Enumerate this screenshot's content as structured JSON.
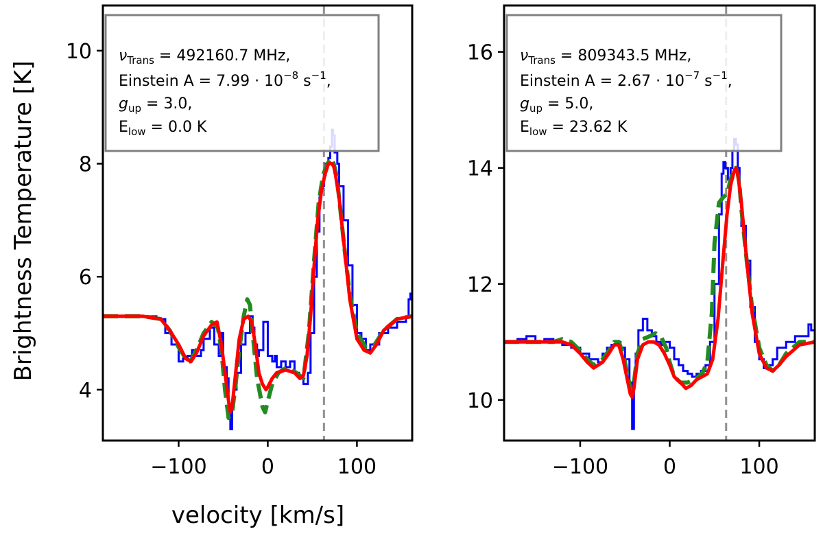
{
  "figure": {
    "ylabel": "Brightness Temperature [K]",
    "xlabel": "velocity [km/s]"
  },
  "chart_data": [
    {
      "type": "line",
      "xlim": [
        -185,
        162
      ],
      "ylim": [
        3.1,
        10.8
      ],
      "xticks": [
        -100,
        0,
        100
      ],
      "xtick_labels": [
        "−100",
        "0",
        "100"
      ],
      "yticks": [
        4,
        6,
        8,
        10
      ],
      "ytick_labels": [
        "4",
        "6",
        "8",
        "10"
      ],
      "vline_x": 63,
      "annotation": [
        {
          "kind": "nu",
          "label": "Trans",
          "value": " = 492160.7 MHz,"
        },
        {
          "kind": "einstein",
          "prefix": "Einstein A = 7.99 · 10",
          "exp": "−8",
          "suffix": " s",
          "suffix_exp": "−1",
          "tail": ","
        },
        {
          "kind": "gup",
          "sub": "up",
          "value": " = 3.0,"
        },
        {
          "kind": "elow",
          "main": "E",
          "sub": "low",
          "value": " = 0.0 K"
        }
      ],
      "series": [
        {
          "name": "observed",
          "color": "#0000ff",
          "style": "step",
          "x": [
            -185,
            -140,
            -125,
            -115,
            -108,
            -100,
            -95,
            -90,
            -85,
            -80,
            -75,
            -72,
            -65,
            -60,
            -55,
            -52,
            -50,
            -46,
            -44,
            -42,
            -40,
            -38,
            -35,
            -30,
            -25,
            -20,
            -17,
            -15,
            -12,
            -10,
            -5,
            0,
            5,
            8,
            10,
            15,
            20,
            25,
            30,
            35,
            40,
            45,
            48,
            52,
            55,
            58,
            60,
            63,
            65,
            68,
            70,
            72,
            73,
            75,
            78,
            80,
            85,
            90,
            95,
            100,
            105,
            110,
            115,
            125,
            135,
            145,
            155,
            158,
            160,
            162
          ],
          "values": [
            5.3,
            5.3,
            5.25,
            5.0,
            4.8,
            4.5,
            4.55,
            4.6,
            4.7,
            4.6,
            4.7,
            4.9,
            5.1,
            4.8,
            4.6,
            5.0,
            4.4,
            4.2,
            3.6,
            3.3,
            3.7,
            4.0,
            4.3,
            4.8,
            5.0,
            5.3,
            5.1,
            4.8,
            4.6,
            4.7,
            5.2,
            4.6,
            4.5,
            4.6,
            4.4,
            4.5,
            4.4,
            4.5,
            4.3,
            4.2,
            4.1,
            4.3,
            5.0,
            6.0,
            6.8,
            7.4,
            7.6,
            7.8,
            8.0,
            8.1,
            8.3,
            8.6,
            8.5,
            8.2,
            8.0,
            7.6,
            7.0,
            6.2,
            5.5,
            5.0,
            4.9,
            4.7,
            4.8,
            5.0,
            5.1,
            5.2,
            5.3,
            5.6,
            5.7,
            5.5
          ]
        },
        {
          "name": "model-dashed",
          "color": "#228b22",
          "style": "dashed",
          "x": [
            -185,
            -140,
            -120,
            -110,
            -100,
            -92,
            -87,
            -80,
            -72,
            -63,
            -56,
            -52,
            -48,
            -44,
            -40,
            -36,
            -32,
            -27,
            -23,
            -20,
            -17,
            -12,
            -6,
            -3,
            0,
            5,
            12,
            22,
            32,
            40,
            46,
            52,
            57,
            62,
            67,
            71,
            74,
            77,
            80,
            86,
            92,
            100,
            110,
            120,
            130,
            145,
            162
          ],
          "values": [
            5.3,
            5.3,
            5.25,
            5.05,
            4.75,
            4.55,
            4.5,
            4.7,
            5.0,
            5.2,
            5.1,
            4.7,
            4.0,
            3.5,
            3.6,
            4.1,
            4.7,
            5.3,
            5.6,
            5.5,
            5.0,
            4.2,
            3.7,
            3.6,
            3.8,
            4.1,
            4.3,
            4.4,
            4.3,
            4.2,
            5.0,
            6.3,
            7.3,
            7.8,
            8.0,
            8.1,
            8.0,
            7.8,
            7.4,
            6.5,
            5.7,
            5.0,
            4.75,
            4.8,
            5.05,
            5.25,
            5.3
          ]
        },
        {
          "name": "model-solid",
          "color": "#ff0000",
          "style": "solid",
          "x": [
            -185,
            -140,
            -120,
            -110,
            -100,
            -92,
            -86,
            -80,
            -72,
            -63,
            -57,
            -52,
            -48,
            -44,
            -42,
            -40,
            -36,
            -32,
            -27,
            -22,
            -18,
            -14,
            -10,
            -6,
            -2,
            0,
            5,
            10,
            20,
            30,
            36,
            40,
            44,
            48,
            52,
            56,
            60,
            64,
            68,
            72,
            74,
            76,
            80,
            86,
            92,
            100,
            108,
            115,
            122,
            130,
            145,
            162
          ],
          "values": [
            5.3,
            5.3,
            5.25,
            5.05,
            4.8,
            4.55,
            4.5,
            4.65,
            4.95,
            5.15,
            5.2,
            4.8,
            4.3,
            3.8,
            3.6,
            3.7,
            4.3,
            4.9,
            5.25,
            5.3,
            5.2,
            4.8,
            4.3,
            4.1,
            4.0,
            4.05,
            4.2,
            4.3,
            4.35,
            4.3,
            4.2,
            4.25,
            4.6,
            5.3,
            6.2,
            7.0,
            7.5,
            7.8,
            8.0,
            8.0,
            7.95,
            7.8,
            7.4,
            6.5,
            5.6,
            4.9,
            4.7,
            4.65,
            4.8,
            5.05,
            5.25,
            5.3
          ]
        }
      ]
    },
    {
      "type": "line",
      "xlim": [
        -185,
        162
      ],
      "ylim": [
        9.3,
        16.8
      ],
      "xticks": [
        -100,
        0,
        100
      ],
      "xtick_labels": [
        "−100",
        "0",
        "100"
      ],
      "yticks": [
        10,
        12,
        14,
        16
      ],
      "ytick_labels": [
        "10",
        "12",
        "14",
        "16"
      ],
      "vline_x": 63,
      "annotation": [
        {
          "kind": "nu",
          "label": "Trans",
          "value": " = 809343.5 MHz,"
        },
        {
          "kind": "einstein",
          "prefix": "Einstein A = 2.67 · 10",
          "exp": "−7",
          "suffix": " s",
          "suffix_exp": "−1",
          "tail": ","
        },
        {
          "kind": "gup",
          "sub": "up",
          "value": " = 5.0,"
        },
        {
          "kind": "elow",
          "main": "E",
          "sub": "low",
          "value": " = 23.62 K"
        }
      ],
      "series": [
        {
          "name": "observed",
          "color": "#0000ff",
          "style": "step",
          "x": [
            -185,
            -170,
            -160,
            -150,
            -140,
            -130,
            -120,
            -110,
            -100,
            -90,
            -80,
            -75,
            -70,
            -65,
            -60,
            -55,
            -50,
            -45,
            -42,
            -40,
            -38,
            -35,
            -30,
            -25,
            -20,
            -15,
            -10,
            -5,
            0,
            5,
            10,
            15,
            20,
            25,
            30,
            35,
            40,
            45,
            50,
            55,
            58,
            60,
            62,
            65,
            68,
            70,
            72,
            74,
            76,
            78,
            80,
            85,
            90,
            95,
            100,
            105,
            110,
            115,
            120,
            130,
            140,
            150,
            155,
            158,
            162
          ],
          "values": [
            11.0,
            11.05,
            11.1,
            11.0,
            11.05,
            11.0,
            10.95,
            10.9,
            10.8,
            10.7,
            10.65,
            10.8,
            10.9,
            10.95,
            11.0,
            10.9,
            10.7,
            10.3,
            9.5,
            10.4,
            10.8,
            11.2,
            11.4,
            11.2,
            11.1,
            11.0,
            10.95,
            11.0,
            10.9,
            10.7,
            10.6,
            10.5,
            10.45,
            10.4,
            10.45,
            10.5,
            10.6,
            11.0,
            12.0,
            13.2,
            13.9,
            14.1,
            14.0,
            13.8,
            14.0,
            14.3,
            14.5,
            14.4,
            14.0,
            13.5,
            13.0,
            12.4,
            11.6,
            11.0,
            10.7,
            10.55,
            10.6,
            10.7,
            10.9,
            11.0,
            11.1,
            11.1,
            11.3,
            11.2,
            11.15
          ]
        },
        {
          "name": "model-dashed",
          "color": "#228b22",
          "style": "dashed",
          "x": [
            -185,
            -150,
            -130,
            -120,
            -110,
            -100,
            -92,
            -85,
            -75,
            -68,
            -62,
            -57,
            -52,
            -48,
            -44,
            -42,
            -40,
            -36,
            -30,
            -22,
            -16,
            -10,
            -4,
            0,
            5,
            12,
            20,
            28,
            36,
            42,
            47,
            50,
            55,
            60,
            64,
            68,
            72,
            74,
            76,
            78,
            80,
            86,
            92,
            100,
            108,
            115,
            122,
            130,
            145,
            162
          ],
          "values": [
            11.0,
            11.0,
            11.0,
            11.05,
            11.0,
            10.85,
            10.7,
            10.6,
            10.7,
            10.85,
            11.0,
            11.0,
            10.8,
            10.5,
            10.2,
            10.15,
            10.3,
            10.8,
            11.05,
            11.1,
            11.15,
            11.1,
            10.9,
            10.65,
            10.4,
            10.3,
            10.3,
            10.35,
            10.45,
            10.65,
            11.5,
            12.7,
            13.4,
            13.5,
            13.55,
            13.8,
            14.0,
            14.0,
            13.9,
            13.7,
            13.3,
            12.4,
            11.6,
            10.9,
            10.6,
            10.5,
            10.6,
            10.8,
            11.0,
            11.0
          ]
        },
        {
          "name": "model-solid",
          "color": "#ff0000",
          "style": "solid",
          "x": [
            -185,
            -150,
            -130,
            -120,
            -110,
            -100,
            -92,
            -85,
            -75,
            -68,
            -62,
            -57,
            -52,
            -48,
            -44,
            -42,
            -40,
            -36,
            -30,
            -24,
            -18,
            -12,
            -6,
            0,
            5,
            12,
            18,
            24,
            30,
            36,
            42,
            48,
            54,
            60,
            64,
            68,
            72,
            74,
            76,
            80,
            86,
            92,
            100,
            108,
            115,
            122,
            130,
            145,
            162
          ],
          "values": [
            11.0,
            11.0,
            11.0,
            11.0,
            10.95,
            10.8,
            10.65,
            10.55,
            10.65,
            10.8,
            10.95,
            10.95,
            10.7,
            10.4,
            10.1,
            10.05,
            10.2,
            10.7,
            10.95,
            11.0,
            11.0,
            10.95,
            10.8,
            10.6,
            10.4,
            10.3,
            10.2,
            10.25,
            10.35,
            10.4,
            10.45,
            10.7,
            11.4,
            12.5,
            13.2,
            13.7,
            13.95,
            14.0,
            13.9,
            13.4,
            12.4,
            11.5,
            10.8,
            10.55,
            10.5,
            10.6,
            10.75,
            10.95,
            11.0
          ]
        }
      ]
    }
  ]
}
